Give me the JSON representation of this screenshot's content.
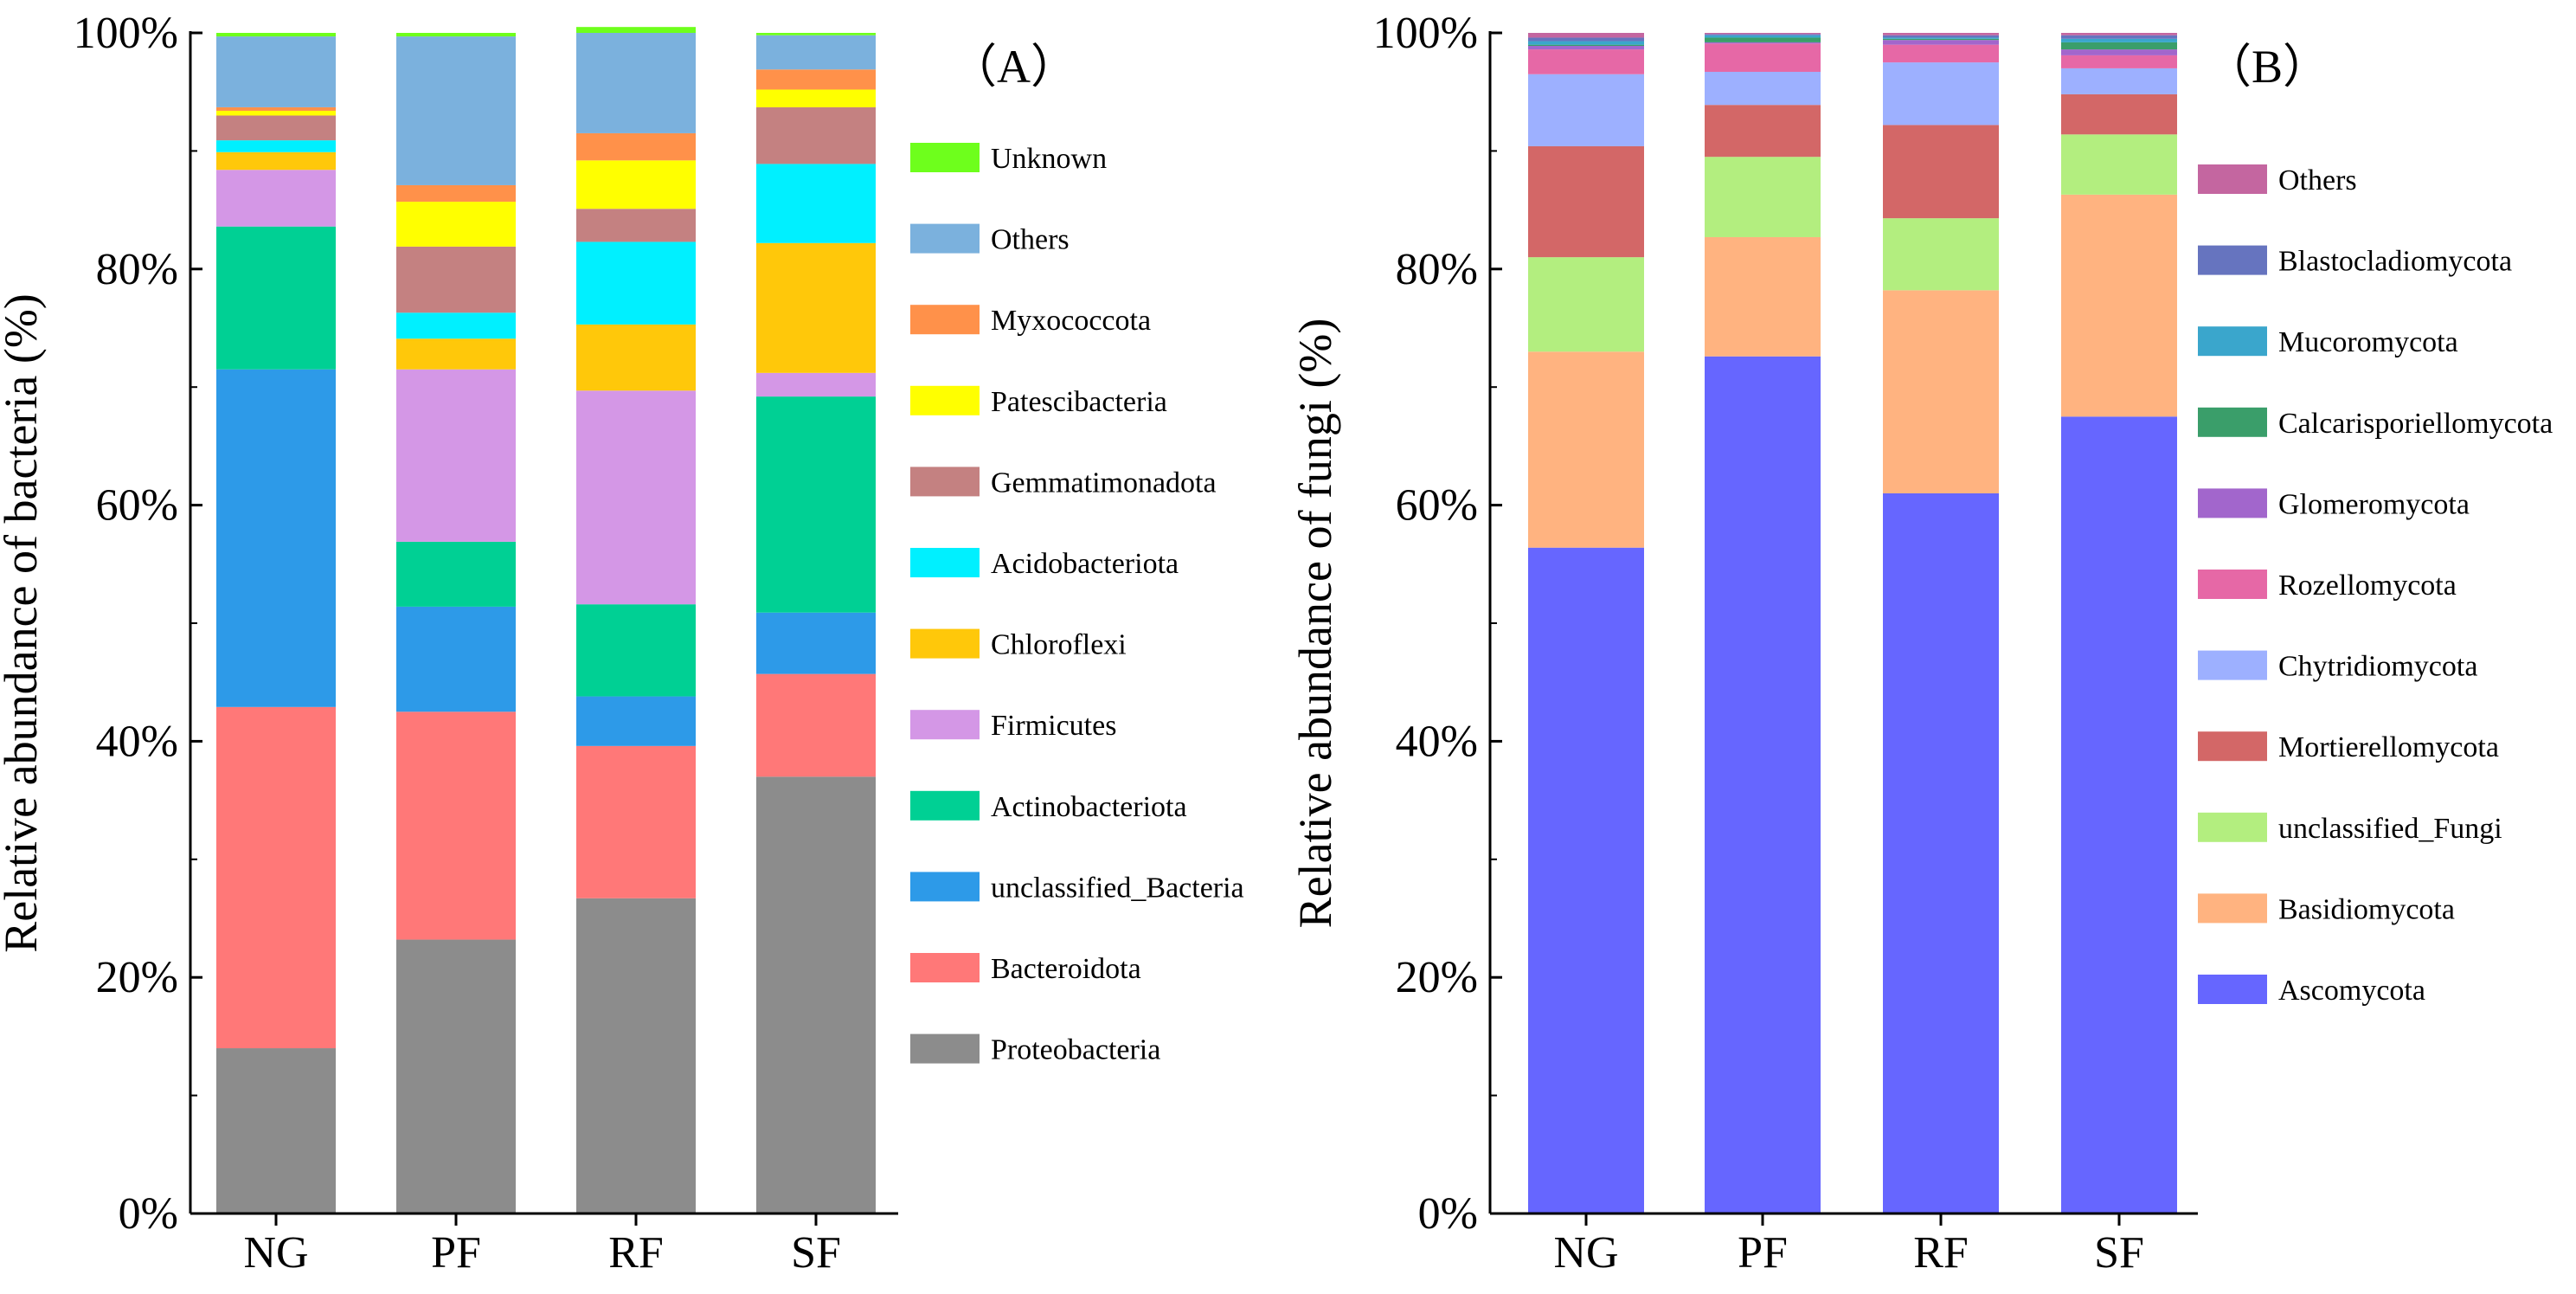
{
  "chart_data": [
    {
      "type": "bar",
      "stacked": true,
      "panel_label": "（A）",
      "ylabel": "Relative abundance of bacteria (%)",
      "xlabel": "",
      "ylim": [
        0,
        100
      ],
      "y_ticks": [
        "0%",
        "20%",
        "40%",
        "60%",
        "80%",
        "100%"
      ],
      "categories": [
        "NG",
        "PF",
        "RF",
        "SF"
      ],
      "series": [
        {
          "name": "Proteobacteria",
          "color": "#8c8c8c",
          "values": [
            14.0,
            23.2,
            26.7,
            37.0
          ]
        },
        {
          "name": "Bacteroidota",
          "color": "#ff7878",
          "values": [
            28.9,
            19.3,
            12.9,
            8.7
          ]
        },
        {
          "name": "unclassified_Bacteria",
          "color": "#2d9ae8",
          "values": [
            28.6,
            8.9,
            4.2,
            5.2
          ]
        },
        {
          "name": "Actinobacteriota",
          "color": "#00d094",
          "values": [
            12.1,
            5.5,
            7.8,
            18.3
          ]
        },
        {
          "name": "Firmicutes",
          "color": "#d497e6",
          "values": [
            4.8,
            14.6,
            18.1,
            2.0
          ]
        },
        {
          "name": "Chloroflexi",
          "color": "#ffc80a",
          "values": [
            1.5,
            2.6,
            5.6,
            11.0
          ]
        },
        {
          "name": "Acidobacteriota",
          "color": "#00f0ff",
          "values": [
            1.0,
            2.2,
            7.0,
            6.7
          ]
        },
        {
          "name": "Gemmatimonadota",
          "color": "#c48181",
          "values": [
            2.1,
            5.6,
            2.8,
            4.8
          ]
        },
        {
          "name": "Patescibacteria",
          "color": "#ffff00",
          "values": [
            0.4,
            3.8,
            4.1,
            1.5
          ]
        },
        {
          "name": "Myxococcota",
          "color": "#ff914a",
          "values": [
            0.3,
            1.4,
            2.3,
            1.7
          ]
        },
        {
          "name": "Others",
          "color": "#7bb1dd",
          "values": [
            6.0,
            12.6,
            8.5,
            2.9
          ]
        },
        {
          "name": "Unknown",
          "color": "#6eff1c",
          "values": [
            0.3,
            0.3,
            0.5,
            0.2
          ]
        }
      ]
    },
    {
      "type": "bar",
      "stacked": true,
      "panel_label": "（B）",
      "ylabel": "Relative abundance of fungi (%)",
      "xlabel": "",
      "ylim": [
        0,
        100
      ],
      "y_ticks": [
        "0%",
        "20%",
        "40%",
        "60%",
        "80%",
        "100%"
      ],
      "categories": [
        "NG",
        "PF",
        "RF",
        "SF"
      ],
      "series": [
        {
          "name": "Ascomycota",
          "color": "#6666ff",
          "values": [
            56.4,
            72.6,
            61.0,
            67.5
          ]
        },
        {
          "name": "Basidiomycota",
          "color": "#ffb380",
          "values": [
            16.6,
            10.1,
            17.2,
            18.8
          ]
        },
        {
          "name": "unclassified_Fungi",
          "color": "#b3ee7f",
          "values": [
            8.0,
            6.8,
            6.1,
            5.1
          ]
        },
        {
          "name": "Mortierellomycota",
          "color": "#d36767",
          "values": [
            9.4,
            4.4,
            7.9,
            3.4
          ]
        },
        {
          "name": "Chytridiomycota",
          "color": "#9db0ff",
          "values": [
            6.1,
            2.8,
            5.3,
            2.2
          ]
        },
        {
          "name": "Rozellomycota",
          "color": "#e668a6",
          "values": [
            2.1,
            2.4,
            1.5,
            1.1
          ]
        },
        {
          "name": "Glomeromycota",
          "color": "#a266cc",
          "values": [
            0.3,
            0.1,
            0.4,
            0.5
          ]
        },
        {
          "name": "Calcarisporiellomycota",
          "color": "#3a9e6a",
          "values": [
            0.1,
            0.4,
            0.1,
            0.6
          ]
        },
        {
          "name": "Mucoromycota",
          "color": "#3aa6cc",
          "values": [
            0.3,
            0.2,
            0.1,
            0.3
          ]
        },
        {
          "name": "Blastocladiomycota",
          "color": "#6674bf",
          "values": [
            0.3,
            0.1,
            0.2,
            0.3
          ]
        },
        {
          "name": "Others",
          "color": "#c466a0",
          "values": [
            0.4,
            0.1,
            0.2,
            0.2
          ]
        }
      ]
    }
  ]
}
